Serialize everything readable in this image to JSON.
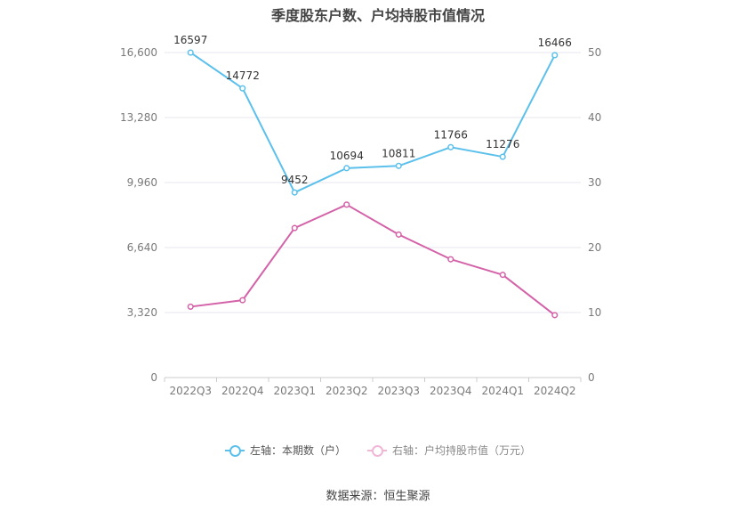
{
  "chart_data": {
    "type": "line",
    "title": "季度股东户数、户均持股市值情况",
    "categories": [
      "2022Q3",
      "2022Q4",
      "2023Q1",
      "2023Q2",
      "2023Q3",
      "2023Q4",
      "2024Q1",
      "2024Q2"
    ],
    "series": [
      {
        "name": "左轴：本期数（户）",
        "axis": "left",
        "color": "#5bc0eb",
        "values": [
          16597,
          14772,
          9452,
          10694,
          10811,
          11766,
          11276,
          16466
        ],
        "labels": [
          "16597",
          "14772",
          "9452",
          "10694",
          "10811",
          "11766",
          "11276",
          "16466"
        ]
      },
      {
        "name": "右轴：户均持股市值（万元）",
        "axis": "right",
        "color": "#d462a8",
        "values": [
          10.9,
          11.9,
          23.0,
          26.6,
          22.0,
          18.2,
          15.8,
          9.6
        ]
      }
    ],
    "y_left": {
      "ylim": [
        0,
        16600
      ],
      "ticks": [
        0,
        3320,
        6640,
        9960,
        13280,
        16600
      ],
      "tick_labels": [
        "0",
        "3,320",
        "6,640",
        "9,960",
        "13,280",
        "16,600"
      ]
    },
    "y_right": {
      "ylim": [
        0,
        50
      ],
      "ticks": [
        0,
        10,
        20,
        30,
        40,
        50
      ],
      "tick_labels": [
        "0",
        "10",
        "20",
        "30",
        "40",
        "50"
      ]
    },
    "grid": true,
    "legend_position": "bottom"
  },
  "source_text": "数据来源：恒生聚源"
}
